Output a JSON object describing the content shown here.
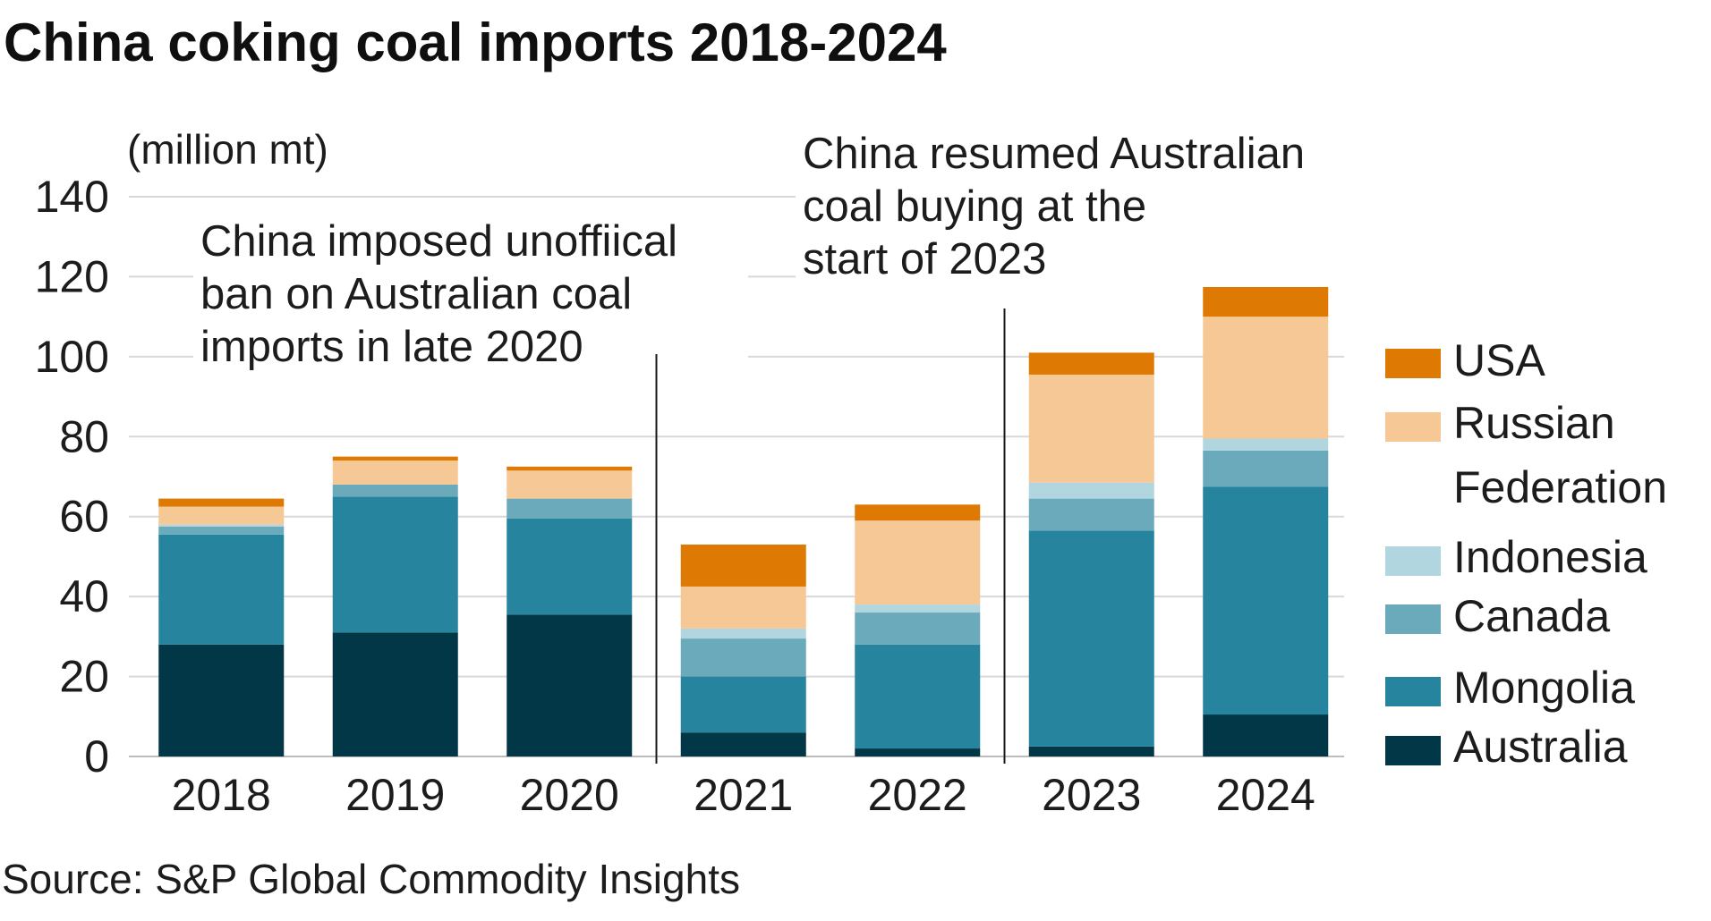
{
  "chart_data": {
    "type": "bar",
    "stacked": true,
    "title": "China coking coal imports 2018-2024",
    "ylabel": "(million mt)",
    "xlabel": "",
    "ylim": [
      0,
      140
    ],
    "yticks": [
      0,
      20,
      40,
      60,
      80,
      100,
      120,
      140
    ],
    "grid": true,
    "legend_position": "right",
    "categories": [
      "2018",
      "2019",
      "2020",
      "2021",
      "2022",
      "2023",
      "2024"
    ],
    "series": [
      {
        "name": "Australia",
        "color": "#023747",
        "values": [
          28,
          31,
          35.5,
          6,
          2,
          2.5,
          10.5
        ]
      },
      {
        "name": "Mongolia",
        "color": "#26849E",
        "values": [
          27.5,
          34,
          24,
          14,
          26,
          54,
          57
        ]
      },
      {
        "name": "Canada",
        "color": "#6AAABB",
        "values": [
          2,
          3,
          5,
          9.5,
          8,
          8,
          9
        ]
      },
      {
        "name": "Indonesia",
        "color": "#B2D6DF",
        "values": [
          0.5,
          0,
          0,
          2.5,
          2,
          4,
          3
        ]
      },
      {
        "name": "Russian Federation",
        "color": "#F6C895",
        "values": [
          4.5,
          6,
          7,
          10.5,
          21,
          27,
          30.5
        ]
      },
      {
        "name": "USA",
        "color": "#DE7A04",
        "values": [
          2,
          1,
          1,
          10.5,
          4,
          5.5,
          10
        ]
      }
    ],
    "legend": [
      {
        "series": "USA",
        "lines": [
          "USA"
        ]
      },
      {
        "series": "Russian Federation",
        "lines": [
          "Russian",
          "Federation"
        ]
      },
      {
        "series": "Indonesia",
        "lines": [
          "Indonesia"
        ]
      },
      {
        "series": "Canada",
        "lines": [
          "Canada"
        ]
      },
      {
        "series": "Mongolia",
        "lines": [
          "Mongolia"
        ]
      },
      {
        "series": "Australia",
        "lines": [
          "Australia"
        ]
      }
    ],
    "annotations": [
      {
        "lines": [
          "China imposed unoffiical",
          "ban on Australian coal",
          "imports in late 2020"
        ],
        "between": [
          "2020",
          "2021"
        ]
      },
      {
        "lines": [
          "China resumed Australian",
          "coal buying at the",
          "start of 2023"
        ],
        "between": [
          "2022",
          "2023"
        ]
      }
    ],
    "source": "Source: S&P Global Commodity Insights"
  }
}
